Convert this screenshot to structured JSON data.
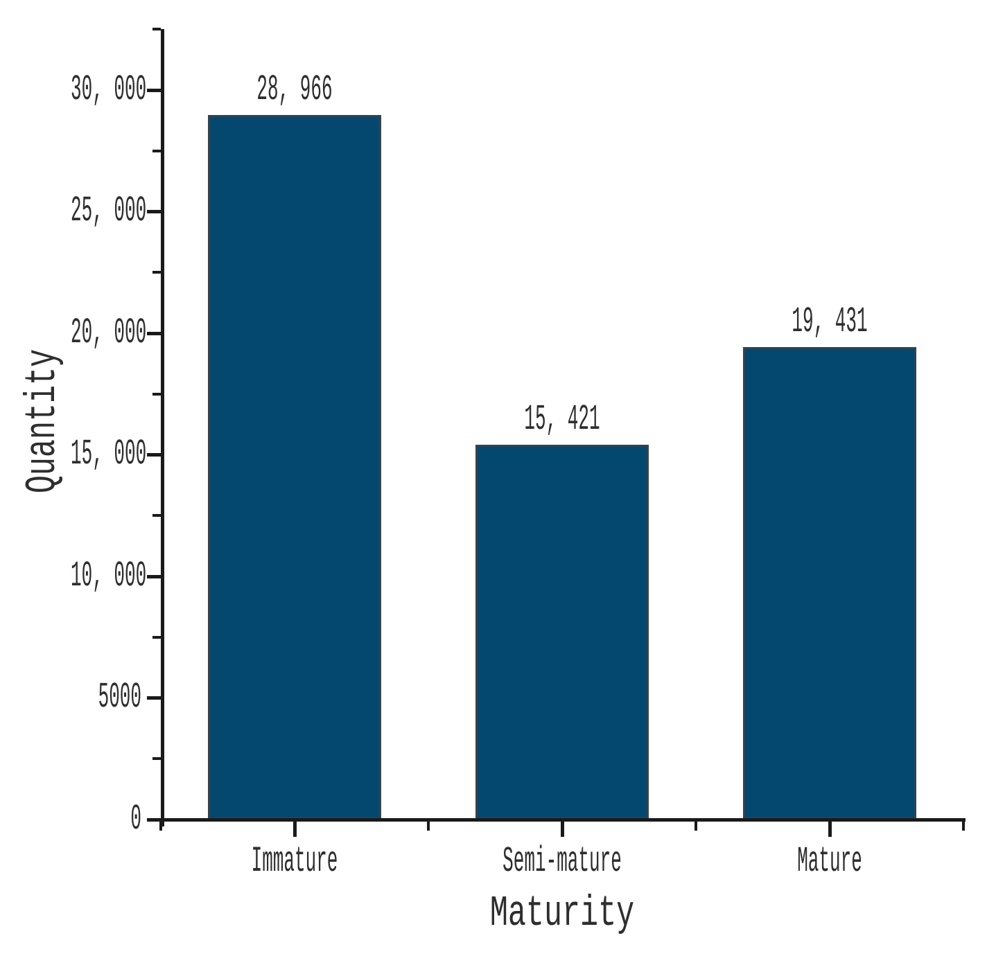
{
  "chart_data": {
    "type": "bar",
    "title": "",
    "xlabel": "Maturity",
    "ylabel": "Quantity",
    "categories": [
      "Immature",
      "Semi-mature",
      "Mature"
    ],
    "values": [
      28966,
      15421,
      19431
    ],
    "value_labels": [
      "28, 966",
      "15, 421",
      "19, 431"
    ],
    "ylim": [
      0,
      32500
    ],
    "y_major_ticks": [
      0,
      5000,
      10000,
      15000,
      20000,
      25000,
      30000
    ],
    "y_tick_labels": [
      "0",
      "5000",
      "10, 000",
      "15, 000",
      "20, 000",
      "25, 000",
      "30, 000"
    ],
    "y_minor_step": 2500,
    "grid": false,
    "legend": false,
    "colors": {
      "bar_fill": "#04486F",
      "bar_border": "#35424b",
      "axis": "#1a1a1a",
      "text": "#2e2e2e",
      "background": "#ffffff"
    }
  }
}
